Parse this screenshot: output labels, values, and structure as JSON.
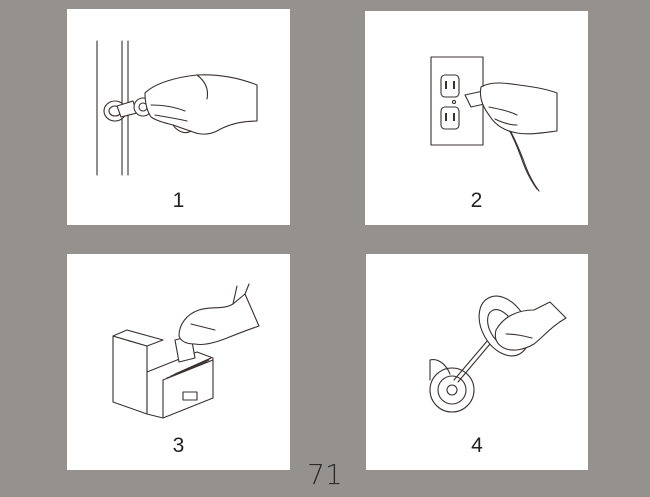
{
  "panels": [
    {
      "number": "1",
      "icon": "key-in-door-lock-icon"
    },
    {
      "number": "2",
      "icon": "plug-in-outlet-icon"
    },
    {
      "number": "3",
      "icon": "file-card-drawer-icon"
    },
    {
      "number": "4",
      "icon": "oil-can-wheel-icon"
    }
  ],
  "page_number": "71",
  "colors": {
    "background": "#95918f",
    "panel": "#ffffff",
    "ink": "#3a3030"
  }
}
